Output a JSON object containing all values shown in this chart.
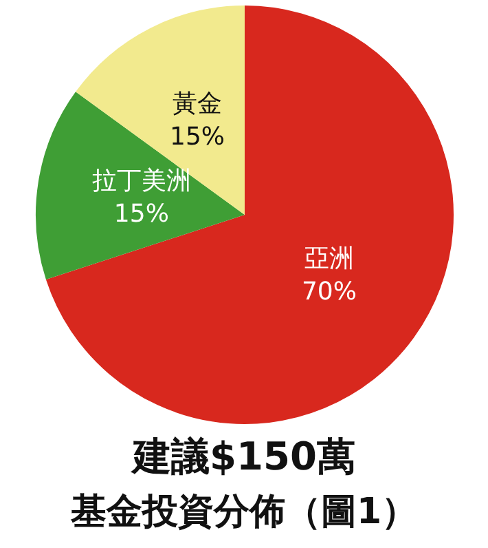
{
  "chart_data": {
    "type": "pie",
    "title": "建議$150萬",
    "subtitle": "基金投資分佈（圖1）",
    "categories": [
      "亞洲",
      "拉丁美洲",
      "黃金"
    ],
    "values": [
      70,
      15,
      15
    ],
    "value_labels": [
      "70%",
      "15%",
      "15%"
    ],
    "colors": [
      "#d8281e",
      "#3f9e35",
      "#f2ea8e"
    ],
    "legend": false
  }
}
